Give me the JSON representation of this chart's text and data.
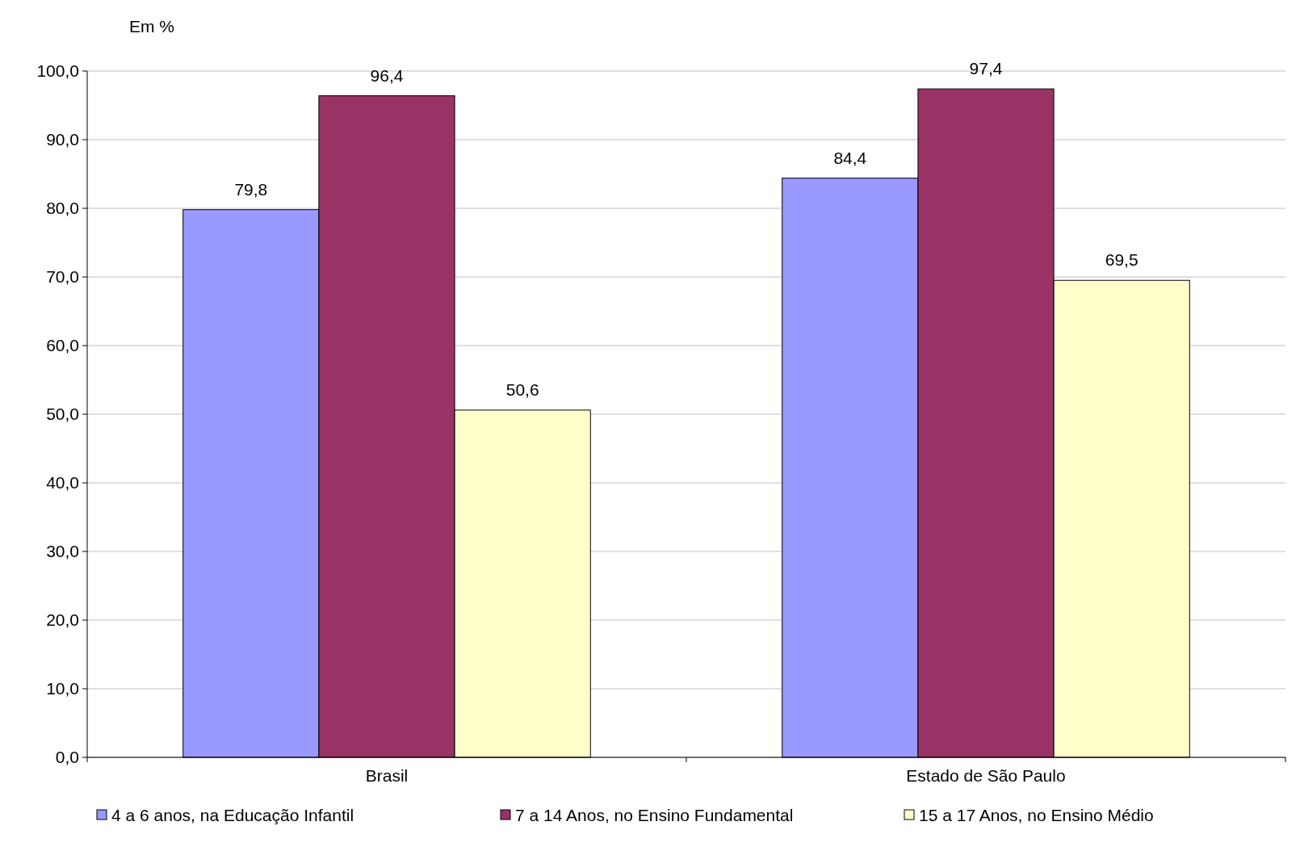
{
  "chart_data": {
    "type": "bar",
    "ylabel": "Em %",
    "categories": [
      "Brasil",
      "Estado de São Paulo"
    ],
    "series": [
      {
        "name": "4 a 6 anos, na Educação Infantil",
        "color": "#9999ff",
        "values": [
          79.8,
          84.4
        ]
      },
      {
        "name": "7 a 14 Anos, no Ensino Fundamental",
        "color": "#993366",
        "values": [
          96.4,
          97.4
        ]
      },
      {
        "name": "15 a 17 Anos, no Ensino Médio",
        "color": "#ffffcc",
        "values": [
          50.6,
          69.5
        ]
      }
    ],
    "ylim": [
      0,
      100
    ],
    "yticks": [
      {
        "value": 0,
        "label": "0,0"
      },
      {
        "value": 10,
        "label": "10,0"
      },
      {
        "value": 20,
        "label": "20,0"
      },
      {
        "value": 30,
        "label": "30,0"
      },
      {
        "value": 40,
        "label": "40,0"
      },
      {
        "value": 50,
        "label": "50,0"
      },
      {
        "value": 60,
        "label": "60,0"
      },
      {
        "value": 70,
        "label": "70,0"
      },
      {
        "value": 80,
        "label": "80,0"
      },
      {
        "value": 90,
        "label": "90,0"
      },
      {
        "value": 100,
        "label": "100,0"
      }
    ],
    "value_labels": [
      [
        "79,8",
        "84,4"
      ],
      [
        "96,4",
        "97,4"
      ],
      [
        "50,6",
        "69,5"
      ]
    ],
    "grid": "y",
    "legend": "bottom"
  }
}
